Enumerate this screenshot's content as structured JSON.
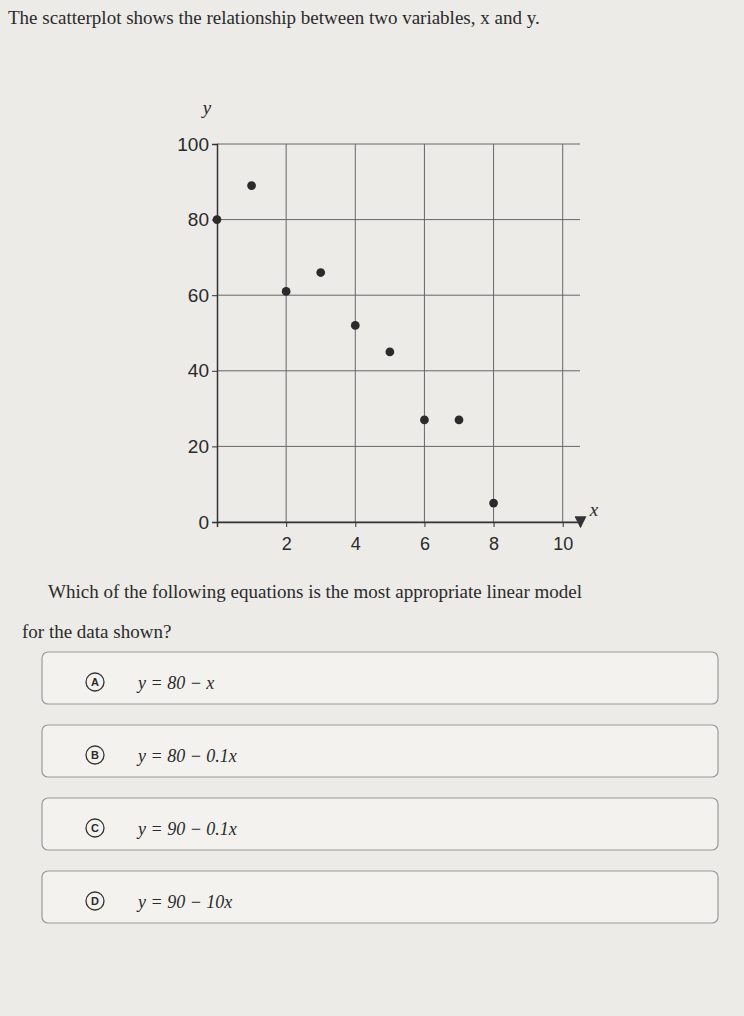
{
  "chart_data": {
    "type": "scatter",
    "x_label": "x",
    "y_label": "y",
    "x": [
      0,
      1,
      2,
      3,
      4,
      5,
      6,
      7,
      8
    ],
    "values": [
      80,
      89,
      61,
      66,
      52,
      45,
      27,
      27,
      5
    ],
    "color": "#2b2b2b",
    "marker": "circle",
    "xlim": [
      0,
      10.5
    ],
    "xticks": [
      2,
      4,
      6,
      8,
      10
    ],
    "ylim": [
      0,
      100
    ],
    "yticks": [
      0,
      20,
      40,
      60,
      80,
      100
    ],
    "grid": true
  },
  "question": {
    "intro": "The scatterplot shows the relationship between two variables, x and y.",
    "prompt_lines": [
      "Which of the following equations is the most appropriate linear model",
      "for the data shown?"
    ],
    "choices": [
      {
        "letter": "A",
        "text": "y = 80 − x"
      },
      {
        "letter": "B",
        "text": "y = 80 − 0.1x"
      },
      {
        "letter": "C",
        "text": "y = 90 − 0.1x"
      },
      {
        "letter": "D",
        "text": "y = 90 − 10x"
      }
    ]
  }
}
